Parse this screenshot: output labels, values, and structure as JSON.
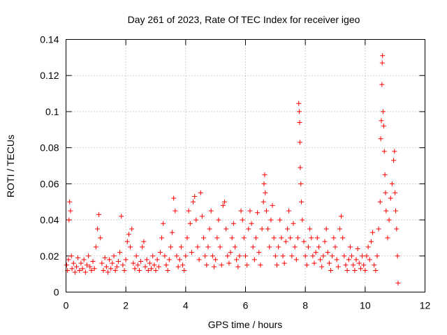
{
  "chart_data": {
    "type": "scatter",
    "title": "Day 261 of 2023, Rate Of TEC Index for receiver igeo",
    "xlabel": "GPS time / hours",
    "ylabel": "ROTI / TECUs",
    "xlim": [
      0,
      12
    ],
    "ylim": [
      0,
      0.14
    ],
    "x_ticks": [
      0,
      2,
      4,
      6,
      8,
      10,
      12
    ],
    "x_tick_labels": [
      "0",
      "2",
      "4",
      "6",
      "8",
      "10",
      "12"
    ],
    "y_ticks": [
      0,
      0.02,
      0.04,
      0.06,
      0.08,
      0.1,
      0.12,
      0.14
    ],
    "y_tick_labels": [
      "0",
      "0.02",
      "0.04",
      "0.06",
      "0.08",
      "0.1",
      "0.12",
      "0.14"
    ],
    "grid": true,
    "marker": "+",
    "color": "#ff0000",
    "series": [
      {
        "name": "ROTI",
        "points": [
          [
            0.02,
            0.015
          ],
          [
            0.05,
            0.012
          ],
          [
            0.08,
            0.018
          ],
          [
            0.1,
            0.04
          ],
          [
            0.12,
            0.05
          ],
          [
            0.15,
            0.045
          ],
          [
            0.18,
            0.02
          ],
          [
            0.2,
            0.013
          ],
          [
            0.25,
            0.016
          ],
          [
            0.3,
            0.011
          ],
          [
            0.35,
            0.014
          ],
          [
            0.4,
            0.019
          ],
          [
            0.45,
            0.012
          ],
          [
            0.5,
            0.016
          ],
          [
            0.55,
            0.013
          ],
          [
            0.6,
            0.018
          ],
          [
            0.65,
            0.011
          ],
          [
            0.7,
            0.015
          ],
          [
            0.75,
            0.02
          ],
          [
            0.8,
            0.014
          ],
          [
            0.85,
            0.012
          ],
          [
            0.9,
            0.017
          ],
          [
            0.95,
            0.013
          ],
          [
            1.0,
            0.025
          ],
          [
            1.05,
            0.035
          ],
          [
            1.1,
            0.043
          ],
          [
            1.15,
            0.03
          ],
          [
            1.2,
            0.016
          ],
          [
            1.25,
            0.012
          ],
          [
            1.3,
            0.019
          ],
          [
            1.35,
            0.014
          ],
          [
            1.4,
            0.011
          ],
          [
            1.45,
            0.018
          ],
          [
            1.5,
            0.013
          ],
          [
            1.55,
            0.016
          ],
          [
            1.6,
            0.02
          ],
          [
            1.65,
            0.012
          ],
          [
            1.7,
            0.014
          ],
          [
            1.75,
            0.017
          ],
          [
            1.8,
            0.022
          ],
          [
            1.85,
            0.042
          ],
          [
            1.9,
            0.015
          ],
          [
            1.95,
            0.012
          ],
          [
            2.0,
            0.018
          ],
          [
            2.05,
            0.028
          ],
          [
            2.1,
            0.032
          ],
          [
            2.15,
            0.025
          ],
          [
            2.2,
            0.035
          ],
          [
            2.25,
            0.016
          ],
          [
            2.3,
            0.013
          ],
          [
            2.35,
            0.02
          ],
          [
            2.4,
            0.015
          ],
          [
            2.45,
            0.012
          ],
          [
            2.5,
            0.017
          ],
          [
            2.55,
            0.025
          ],
          [
            2.6,
            0.028
          ],
          [
            2.65,
            0.014
          ],
          [
            2.7,
            0.018
          ],
          [
            2.75,
            0.012
          ],
          [
            2.8,
            0.016
          ],
          [
            2.85,
            0.013
          ],
          [
            2.9,
            0.02
          ],
          [
            2.95,
            0.015
          ],
          [
            3.0,
            0.012
          ],
          [
            3.05,
            0.018
          ],
          [
            3.1,
            0.014
          ],
          [
            3.15,
            0.022
          ],
          [
            3.2,
            0.03
          ],
          [
            3.25,
            0.038
          ],
          [
            3.3,
            0.02
          ],
          [
            3.35,
            0.015
          ],
          [
            3.4,
            0.012
          ],
          [
            3.45,
            0.018
          ],
          [
            3.5,
            0.025
          ],
          [
            3.55,
            0.033
          ],
          [
            3.6,
            0.052
          ],
          [
            3.65,
            0.045
          ],
          [
            3.7,
            0.02
          ],
          [
            3.75,
            0.014
          ],
          [
            3.8,
            0.018
          ],
          [
            3.85,
            0.025
          ],
          [
            3.9,
            0.015
          ],
          [
            3.95,
            0.012
          ],
          [
            4.0,
            0.02
          ],
          [
            4.05,
            0.03
          ],
          [
            4.1,
            0.045
          ],
          [
            4.15,
            0.038
          ],
          [
            4.2,
            0.022
          ],
          [
            4.25,
            0.05
          ],
          [
            4.3,
            0.053
          ],
          [
            4.35,
            0.04
          ],
          [
            4.4,
            0.025
          ],
          [
            4.45,
            0.018
          ],
          [
            4.5,
            0.055
          ],
          [
            4.55,
            0.042
          ],
          [
            4.6,
            0.03
          ],
          [
            4.65,
            0.02
          ],
          [
            4.7,
            0.015
          ],
          [
            4.75,
            0.025
          ],
          [
            4.8,
            0.035
          ],
          [
            4.85,
            0.045
          ],
          [
            4.9,
            0.02
          ],
          [
            4.95,
            0.014
          ],
          [
            5.0,
            0.018
          ],
          [
            5.05,
            0.03
          ],
          [
            5.1,
            0.04
          ],
          [
            5.15,
            0.025
          ],
          [
            5.2,
            0.015
          ],
          [
            5.25,
            0.048
          ],
          [
            5.3,
            0.05
          ],
          [
            5.35,
            0.035
          ],
          [
            5.4,
            0.02
          ],
          [
            5.45,
            0.016
          ],
          [
            5.5,
            0.022
          ],
          [
            5.55,
            0.03
          ],
          [
            5.6,
            0.038
          ],
          [
            5.65,
            0.025
          ],
          [
            5.7,
            0.018
          ],
          [
            5.75,
            0.014
          ],
          [
            5.8,
            0.02
          ],
          [
            5.85,
            0.045
          ],
          [
            5.9,
            0.04
          ],
          [
            5.95,
            0.03
          ],
          [
            6.0,
            0.02
          ],
          [
            6.05,
            0.015
          ],
          [
            6.1,
            0.035
          ],
          [
            6.15,
            0.045
          ],
          [
            6.2,
            0.038
          ],
          [
            6.25,
            0.025
          ],
          [
            6.3,
            0.018
          ],
          [
            6.35,
            0.03
          ],
          [
            6.4,
            0.044
          ],
          [
            6.45,
            0.022
          ],
          [
            6.5,
            0.015
          ],
          [
            6.55,
            0.035
          ],
          [
            6.6,
            0.05
          ],
          [
            6.62,
            0.06
          ],
          [
            6.64,
            0.065
          ],
          [
            6.66,
            0.055
          ],
          [
            6.7,
            0.045
          ],
          [
            6.75,
            0.035
          ],
          [
            6.8,
            0.025
          ],
          [
            6.85,
            0.04
          ],
          [
            6.9,
            0.048
          ],
          [
            6.95,
            0.03
          ],
          [
            7.0,
            0.02
          ],
          [
            7.05,
            0.015
          ],
          [
            7.1,
            0.025
          ],
          [
            7.15,
            0.04
          ],
          [
            7.2,
            0.03
          ],
          [
            7.25,
            0.02
          ],
          [
            7.3,
            0.016
          ],
          [
            7.35,
            0.028
          ],
          [
            7.4,
            0.035
          ],
          [
            7.45,
            0.045
          ],
          [
            7.5,
            0.03
          ],
          [
            7.55,
            0.02
          ],
          [
            7.6,
            0.038
          ],
          [
            7.65,
            0.025
          ],
          [
            7.7,
            0.018
          ],
          [
            7.75,
            0.03
          ],
          [
            7.78,
            0.1045
          ],
          [
            7.8,
            0.1
          ],
          [
            7.81,
            0.094
          ],
          [
            7.82,
            0.083
          ],
          [
            7.83,
            0.069
          ],
          [
            7.85,
            0.06
          ],
          [
            7.87,
            0.05
          ],
          [
            7.9,
            0.04
          ],
          [
            7.95,
            0.028
          ],
          [
            8.0,
            0.02
          ],
          [
            8.05,
            0.015
          ],
          [
            8.1,
            0.025
          ],
          [
            8.15,
            0.035
          ],
          [
            8.2,
            0.03
          ],
          [
            8.25,
            0.02
          ],
          [
            8.3,
            0.016
          ],
          [
            8.35,
            0.022
          ],
          [
            8.4,
            0.03
          ],
          [
            8.45,
            0.025
          ],
          [
            8.5,
            0.018
          ],
          [
            8.55,
            0.014
          ],
          [
            8.6,
            0.02
          ],
          [
            8.65,
            0.028
          ],
          [
            8.7,
            0.035
          ],
          [
            8.75,
            0.022
          ],
          [
            8.8,
            0.016
          ],
          [
            8.85,
            0.012
          ],
          [
            8.9,
            0.02
          ],
          [
            8.95,
            0.03
          ],
          [
            9.0,
            0.025
          ],
          [
            9.05,
            0.018
          ],
          [
            9.1,
            0.014
          ],
          [
            9.15,
            0.035
          ],
          [
            9.2,
            0.042
          ],
          [
            9.25,
            0.03
          ],
          [
            9.3,
            0.02
          ],
          [
            9.35,
            0.015
          ],
          [
            9.4,
            0.012
          ],
          [
            9.45,
            0.018
          ],
          [
            9.5,
            0.025
          ],
          [
            9.55,
            0.02
          ],
          [
            9.6,
            0.015
          ],
          [
            9.65,
            0.012
          ],
          [
            9.7,
            0.018
          ],
          [
            9.75,
            0.024
          ],
          [
            9.8,
            0.016
          ],
          [
            9.85,
            0.013
          ],
          [
            9.9,
            0.02
          ],
          [
            9.95,
            0.015
          ],
          [
            10.0,
            0.012
          ],
          [
            10.05,
            0.02
          ],
          [
            10.1,
            0.025
          ],
          [
            10.15,
            0.018
          ],
          [
            10.2,
            0.028
          ],
          [
            10.25,
            0.033
          ],
          [
            10.3,
            0.015
          ],
          [
            10.35,
            0.012
          ],
          [
            10.4,
            0.02
          ],
          [
            10.45,
            0.035
          ],
          [
            10.5,
            0.05
          ],
          [
            10.52,
            0.085
          ],
          [
            10.54,
            0.095
          ],
          [
            10.56,
            0.115
          ],
          [
            10.57,
            0.127
          ],
          [
            10.58,
            0.131
          ],
          [
            10.6,
            0.1
          ],
          [
            10.62,
            0.092
          ],
          [
            10.64,
            0.078
          ],
          [
            10.66,
            0.065
          ],
          [
            10.68,
            0.055
          ],
          [
            10.7,
            0.045
          ],
          [
            10.75,
            0.03
          ],
          [
            10.8,
            0.04
          ],
          [
            10.85,
            0.052
          ],
          [
            10.9,
            0.06
          ],
          [
            10.95,
            0.073
          ],
          [
            10.98,
            0.078
          ],
          [
            11.0,
            0.055
          ],
          [
            11.02,
            0.045
          ],
          [
            11.05,
            0.035
          ],
          [
            11.08,
            0.02
          ],
          [
            11.1,
            0.005
          ]
        ]
      }
    ]
  }
}
